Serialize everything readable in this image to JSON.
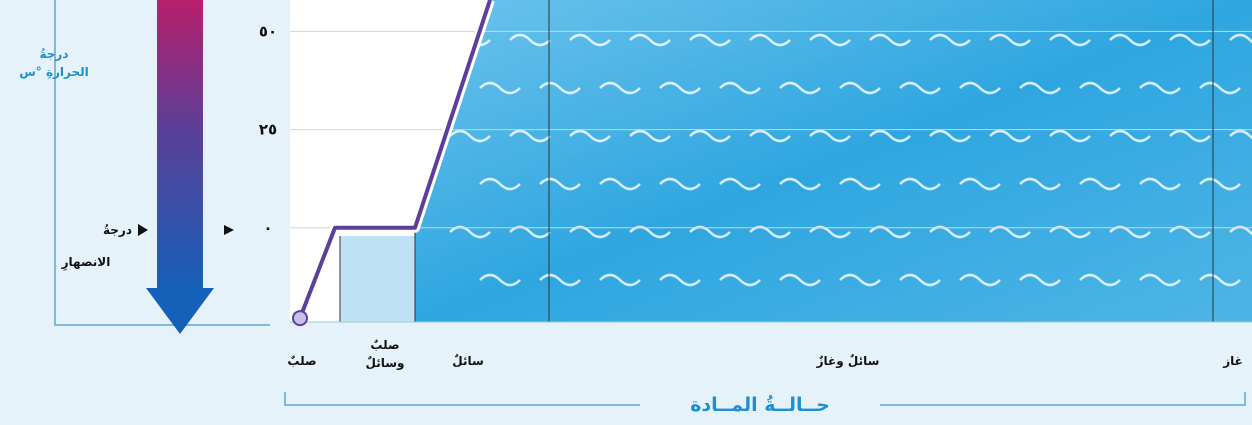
{
  "chart_data": {
    "type": "line",
    "ylabel": [
      "درجةُ",
      "الحرارةِ °س"
    ],
    "melting_label": [
      "درجةُ",
      "الانصهارِ"
    ],
    "xlabel": "حــالــةُ المــادة",
    "categories": [
      "صلبٌ",
      "صلبٌ وسائلٌ",
      "سائلٌ",
      "سائلٌ وغازٌ",
      "غاز"
    ],
    "curve": {
      "color": "#5b3f9a",
      "values": [
        -23,
        0,
        0,
        58
      ]
    },
    "ylim": [
      -24,
      58
    ],
    "yticks": [
      {
        "value": 0,
        "label": "٠"
      },
      {
        "value": 25,
        "label": "٢٥"
      },
      {
        "value": 50,
        "label": "٥٠"
      }
    ],
    "grid": true
  }
}
